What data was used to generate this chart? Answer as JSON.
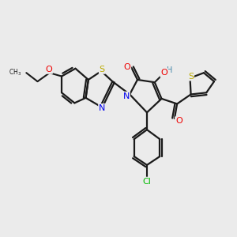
{
  "background_color": "#ebebeb",
  "bond_color": "#1a1a1a",
  "atom_colors": {
    "N": "#0000ee",
    "O": "#ee0000",
    "S": "#bbaa00",
    "Cl": "#00bb00",
    "H": "#4488aa",
    "C": "#1a1a1a"
  },
  "figsize": [
    3.0,
    3.0
  ],
  "dpi": 100
}
